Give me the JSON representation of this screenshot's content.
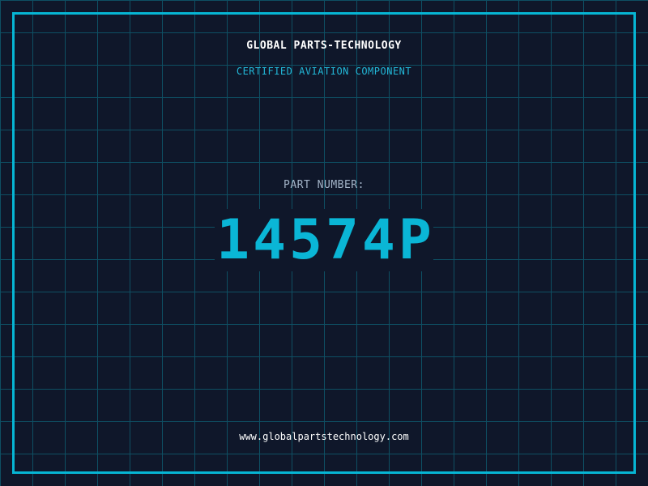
{
  "header": {
    "title": "GLOBAL PARTS-TECHNOLOGY",
    "subtitle": "CERTIFIED AVIATION COMPONENT"
  },
  "part": {
    "label": "PART NUMBER:",
    "number": "14574P"
  },
  "footer": {
    "url": "www.globalpartstechnology.com"
  },
  "colors": {
    "background": "#0f172a",
    "accent": "#06b6d4",
    "grid": "#0e4f63"
  }
}
